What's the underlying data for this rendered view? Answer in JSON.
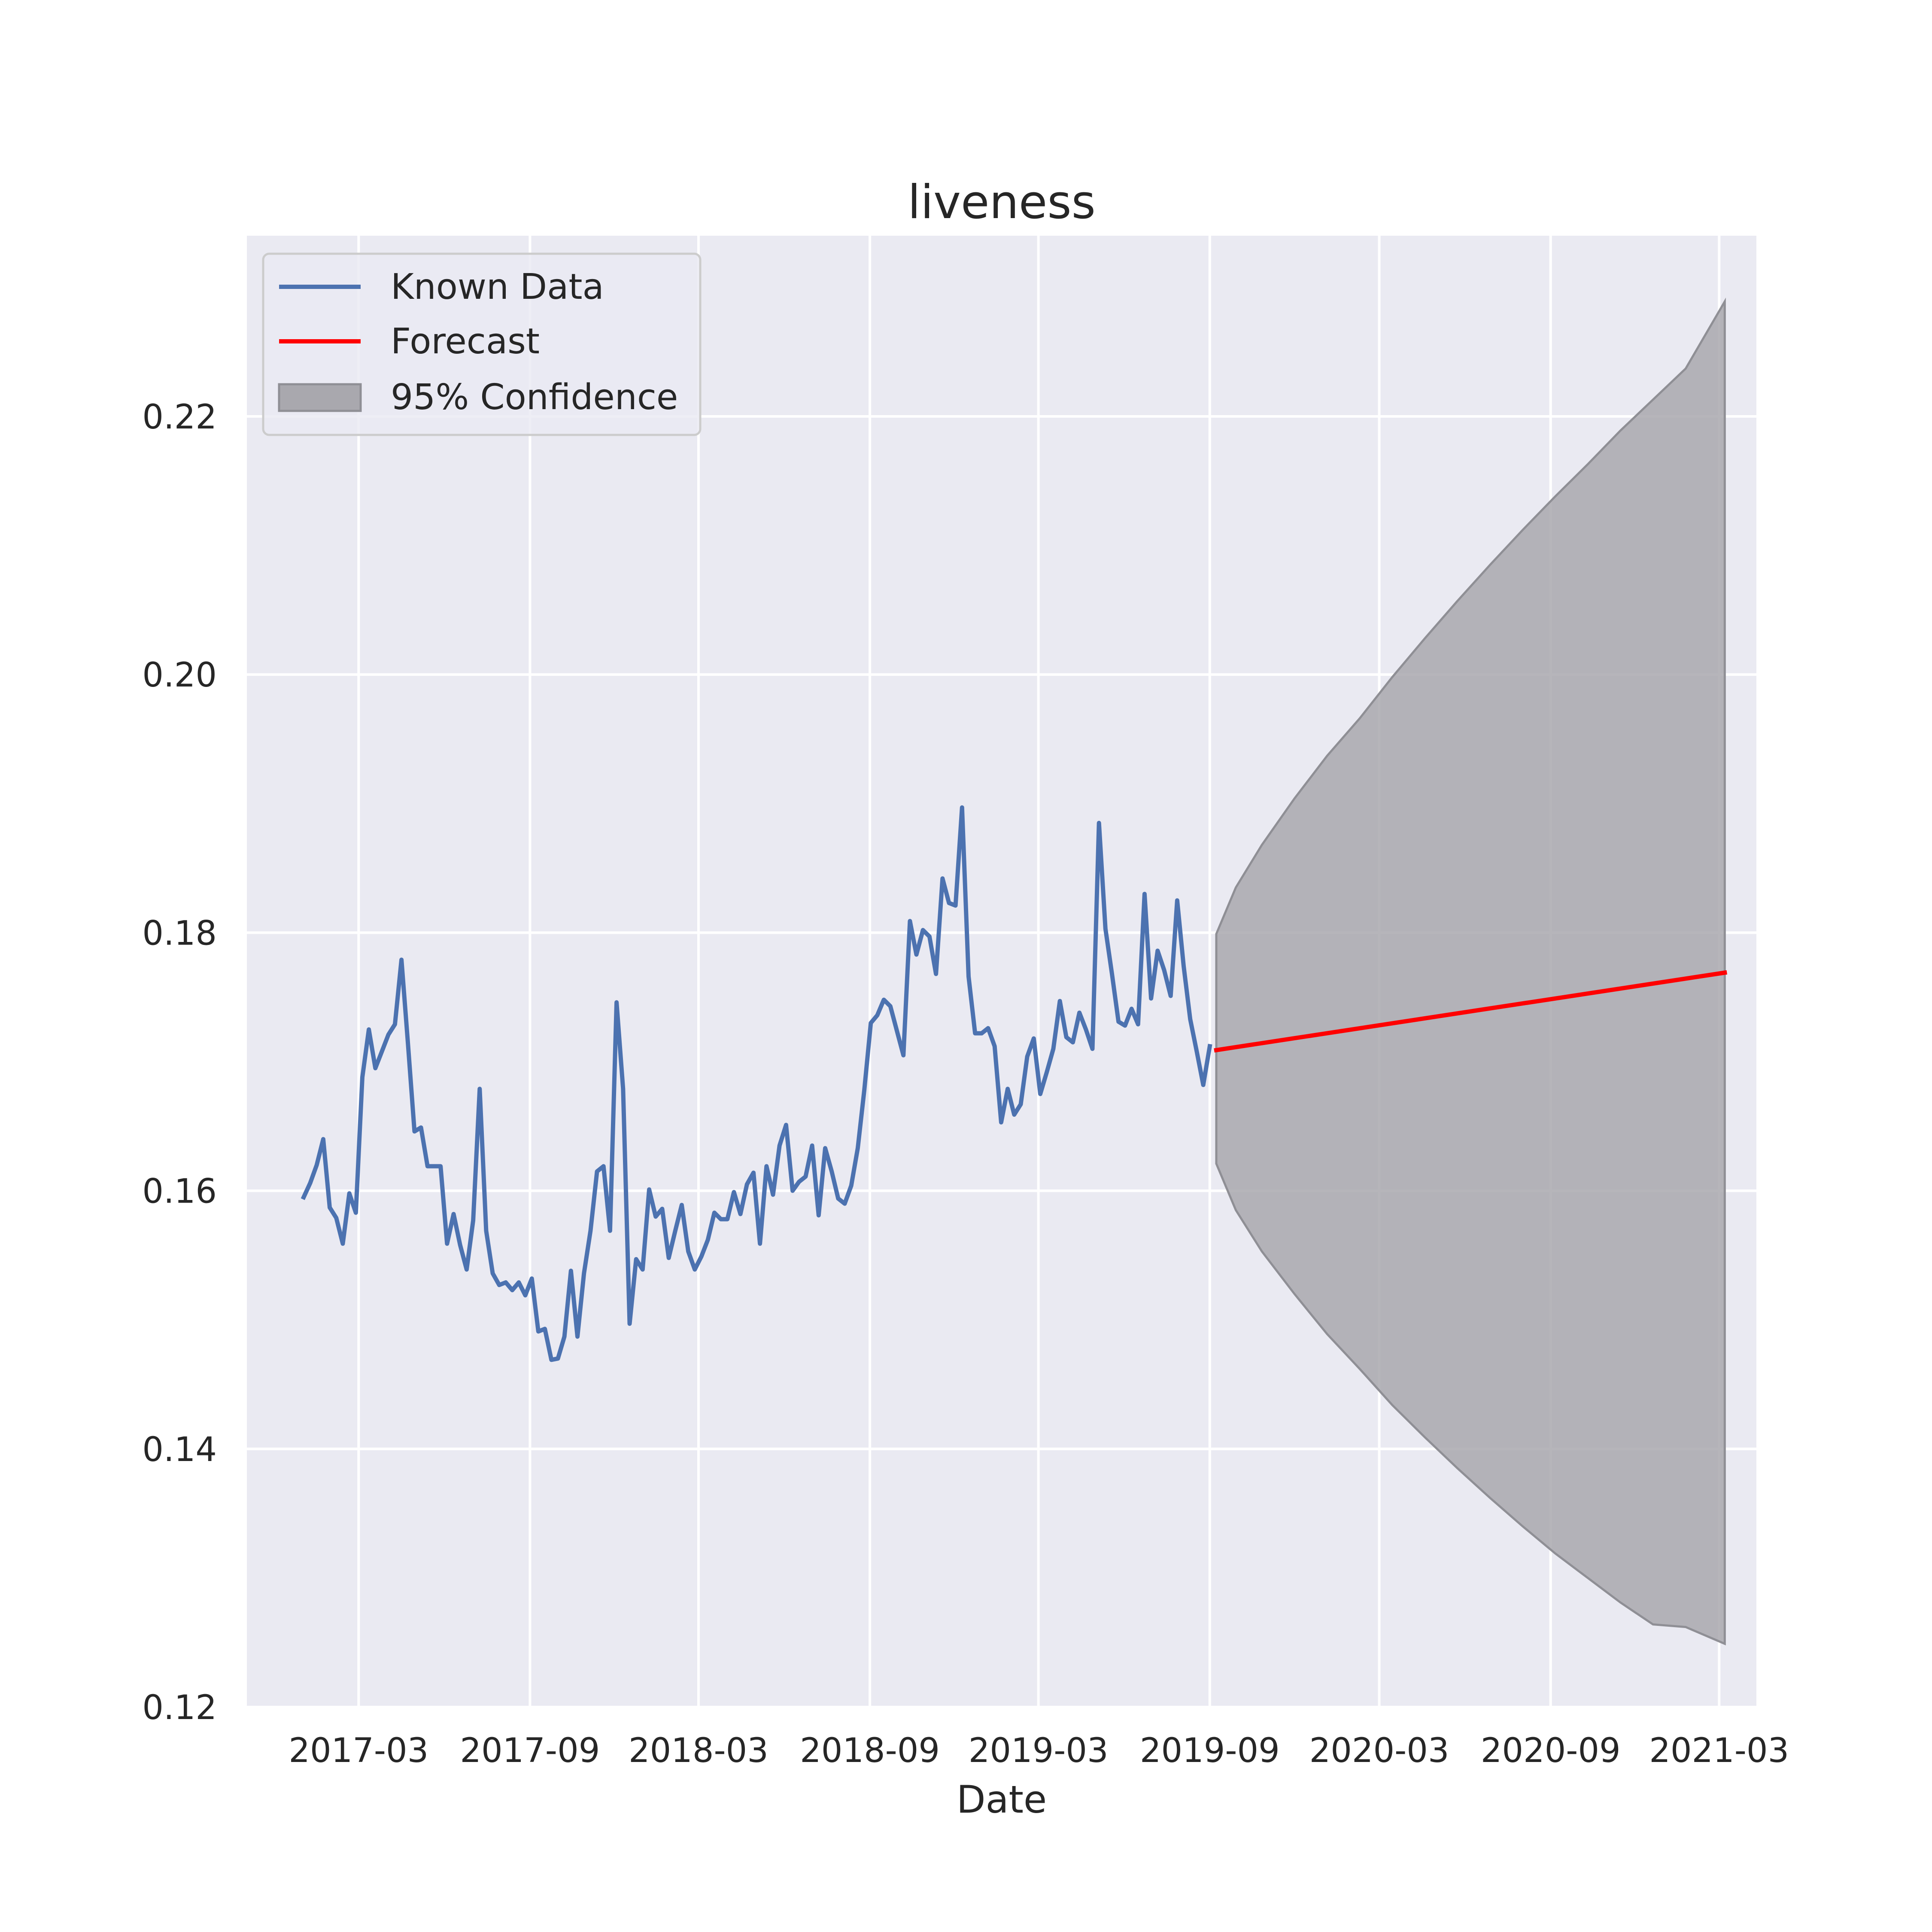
{
  "chart_data": {
    "type": "line",
    "title": "liveness",
    "xlabel": "Date",
    "ylabel": "",
    "ylim": [
      0.12,
      0.234
    ],
    "xlim": [
      "2016-11-01",
      "2021-04-10"
    ],
    "grid": true,
    "legend_position": "top-left",
    "x_ticks": [
      {
        "date": "2017-03-01",
        "label": "2017-03"
      },
      {
        "date": "2017-09-01",
        "label": "2017-09"
      },
      {
        "date": "2018-03-01",
        "label": "2018-03"
      },
      {
        "date": "2018-09-01",
        "label": "2018-09"
      },
      {
        "date": "2019-03-01",
        "label": "2019-03"
      },
      {
        "date": "2019-09-01",
        "label": "2019-09"
      },
      {
        "date": "2020-03-01",
        "label": "2020-03"
      },
      {
        "date": "2020-09-01",
        "label": "2020-09"
      },
      {
        "date": "2021-03-01",
        "label": "2021-03"
      }
    ],
    "y_ticks": [
      {
        "value": 0.12,
        "label": "0.12"
      },
      {
        "value": 0.14,
        "label": "0.14"
      },
      {
        "value": 0.16,
        "label": "0.16"
      },
      {
        "value": 0.18,
        "label": "0.18"
      },
      {
        "value": 0.2,
        "label": "0.20"
      },
      {
        "value": 0.22,
        "label": "0.22"
      }
    ],
    "legend": [
      {
        "label": "Known Data",
        "kind": "line",
        "color": "#4c72b0"
      },
      {
        "label": "Forecast",
        "kind": "line",
        "color": "#ff0000"
      },
      {
        "label": "95% Confidence",
        "kind": "patch",
        "color": "#a9a8ae"
      }
    ],
    "series": [
      {
        "name": "Known Data",
        "color": "#4c72b0",
        "points": [
          [
            "2017-01-01",
            0.1595
          ],
          [
            "2017-01-08",
            0.1606
          ],
          [
            "2017-01-15",
            0.162
          ],
          [
            "2017-01-22",
            0.164
          ],
          [
            "2017-01-29",
            0.1587
          ],
          [
            "2017-02-05",
            0.1579
          ],
          [
            "2017-02-12",
            0.1559
          ],
          [
            "2017-02-19",
            0.1598
          ],
          [
            "2017-02-26",
            0.1583
          ],
          [
            "2017-03-05",
            0.1688
          ],
          [
            "2017-03-12",
            0.1725
          ],
          [
            "2017-03-19",
            0.1695
          ],
          [
            "2017-03-26",
            0.1708
          ],
          [
            "2017-04-02",
            0.1721
          ],
          [
            "2017-04-09",
            0.1729
          ],
          [
            "2017-04-16",
            0.1779
          ],
          [
            "2017-04-23",
            0.1714
          ],
          [
            "2017-04-30",
            0.1646
          ],
          [
            "2017-05-07",
            0.1649
          ],
          [
            "2017-05-14",
            0.1619
          ],
          [
            "2017-05-21",
            0.1619
          ],
          [
            "2017-05-28",
            0.1619
          ],
          [
            "2017-06-04",
            0.1559
          ],
          [
            "2017-06-11",
            0.1582
          ],
          [
            "2017-06-18",
            0.1558
          ],
          [
            "2017-06-25",
            0.1539
          ],
          [
            "2017-07-02",
            0.1577
          ],
          [
            "2017-07-09",
            0.1679
          ],
          [
            "2017-07-16",
            0.1569
          ],
          [
            "2017-07-23",
            0.1536
          ],
          [
            "2017-07-30",
            0.1527
          ],
          [
            "2017-08-06",
            0.1529
          ],
          [
            "2017-08-13",
            0.1523
          ],
          [
            "2017-08-20",
            0.1529
          ],
          [
            "2017-08-27",
            0.1519
          ],
          [
            "2017-09-03",
            0.1532
          ],
          [
            "2017-09-10",
            0.1491
          ],
          [
            "2017-09-17",
            0.1493
          ],
          [
            "2017-09-24",
            0.1469
          ],
          [
            "2017-10-01",
            0.147
          ],
          [
            "2017-10-08",
            0.1487
          ],
          [
            "2017-10-15",
            0.1538
          ],
          [
            "2017-10-22",
            0.1487
          ],
          [
            "2017-10-29",
            0.1536
          ],
          [
            "2017-11-05",
            0.1569
          ],
          [
            "2017-11-12",
            0.1615
          ],
          [
            "2017-11-19",
            0.1619
          ],
          [
            "2017-11-26",
            0.1569
          ],
          [
            "2017-12-03",
            0.1746
          ],
          [
            "2017-12-10",
            0.1679
          ],
          [
            "2017-12-17",
            0.1497
          ],
          [
            "2017-12-24",
            0.1547
          ],
          [
            "2017-12-31",
            0.1539
          ],
          [
            "2018-01-07",
            0.1601
          ],
          [
            "2018-01-14",
            0.158
          ],
          [
            "2018-01-21",
            0.1586
          ],
          [
            "2018-01-28",
            0.1548
          ],
          [
            "2018-02-04",
            0.1569
          ],
          [
            "2018-02-11",
            0.1589
          ],
          [
            "2018-02-18",
            0.1553
          ],
          [
            "2018-02-25",
            0.1539
          ],
          [
            "2018-03-04",
            0.1549
          ],
          [
            "2018-03-11",
            0.1562
          ],
          [
            "2018-03-18",
            0.1583
          ],
          [
            "2018-03-25",
            0.1578
          ],
          [
            "2018-04-01",
            0.1578
          ],
          [
            "2018-04-08",
            0.1599
          ],
          [
            "2018-04-15",
            0.1582
          ],
          [
            "2018-04-22",
            0.1605
          ],
          [
            "2018-04-29",
            0.1614
          ],
          [
            "2018-05-06",
            0.1559
          ],
          [
            "2018-05-13",
            0.1619
          ],
          [
            "2018-05-20",
            0.1597
          ],
          [
            "2018-05-27",
            0.1635
          ],
          [
            "2018-06-03",
            0.1651
          ],
          [
            "2018-06-10",
            0.16
          ],
          [
            "2018-06-17",
            0.1607
          ],
          [
            "2018-06-24",
            0.1611
          ],
          [
            "2018-07-01",
            0.1635
          ],
          [
            "2018-07-08",
            0.1581
          ],
          [
            "2018-07-15",
            0.1633
          ],
          [
            "2018-07-22",
            0.1615
          ],
          [
            "2018-07-29",
            0.1594
          ],
          [
            "2018-08-05",
            0.159
          ],
          [
            "2018-08-12",
            0.1604
          ],
          [
            "2018-08-19",
            0.1633
          ],
          [
            "2018-08-26",
            0.1678
          ],
          [
            "2018-09-02",
            0.173
          ],
          [
            "2018-09-09",
            0.1736
          ],
          [
            "2018-09-16",
            0.1748
          ],
          [
            "2018-09-23",
            0.1743
          ],
          [
            "2018-09-30",
            0.1724
          ],
          [
            "2018-10-07",
            0.1705
          ],
          [
            "2018-10-14",
            0.1809
          ],
          [
            "2018-10-21",
            0.1783
          ],
          [
            "2018-10-28",
            0.1802
          ],
          [
            "2018-11-04",
            0.1797
          ],
          [
            "2018-11-11",
            0.1768
          ],
          [
            "2018-11-18",
            0.1842
          ],
          [
            "2018-11-25",
            0.1823
          ],
          [
            "2018-12-02",
            0.1821
          ],
          [
            "2018-12-09",
            0.1897
          ],
          [
            "2018-12-16",
            0.1766
          ],
          [
            "2018-12-23",
            0.1722
          ],
          [
            "2018-12-30",
            0.1722
          ],
          [
            "2019-01-06",
            0.1726
          ],
          [
            "2019-01-13",
            0.1712
          ],
          [
            "2019-01-20",
            0.1653
          ],
          [
            "2019-01-27",
            0.1679
          ],
          [
            "2019-02-03",
            0.1659
          ],
          [
            "2019-02-10",
            0.1667
          ],
          [
            "2019-02-17",
            0.1704
          ],
          [
            "2019-02-24",
            0.1718
          ],
          [
            "2019-03-03",
            0.1675
          ],
          [
            "2019-03-10",
            0.1692
          ],
          [
            "2019-03-17",
            0.171
          ],
          [
            "2019-03-24",
            0.1747
          ],
          [
            "2019-03-31",
            0.1719
          ],
          [
            "2019-04-07",
            0.1715
          ],
          [
            "2019-04-14",
            0.1738
          ],
          [
            "2019-04-21",
            0.1725
          ],
          [
            "2019-04-28",
            0.171
          ],
          [
            "2019-05-05",
            0.1885
          ],
          [
            "2019-05-12",
            0.1803
          ],
          [
            "2019-05-19",
            0.1768
          ],
          [
            "2019-05-26",
            0.1731
          ],
          [
            "2019-06-02",
            0.1728
          ],
          [
            "2019-06-09",
            0.1741
          ],
          [
            "2019-06-16",
            0.1729
          ],
          [
            "2019-06-23",
            0.183
          ],
          [
            "2019-06-30",
            0.1749
          ],
          [
            "2019-07-07",
            0.1786
          ],
          [
            "2019-07-14",
            0.1771
          ],
          [
            "2019-07-21",
            0.1751
          ],
          [
            "2019-07-28",
            0.1825
          ],
          [
            "2019-08-04",
            0.1774
          ],
          [
            "2019-08-11",
            0.1733
          ],
          [
            "2019-08-18",
            0.1708
          ],
          [
            "2019-08-25",
            0.1682
          ],
          [
            "2019-09-01",
            0.1712
          ]
        ]
      },
      {
        "name": "Forecast",
        "color": "#ff0000",
        "points": [
          [
            "2019-09-08",
            0.1709
          ],
          [
            "2021-03-07",
            0.1769
          ]
        ]
      }
    ],
    "confidence": {
      "name": "95% Confidence",
      "color": "#a9a8ae",
      "points": [
        [
          "2019-09-08",
          0.1799,
          0.1621
        ],
        [
          "2019-09-29",
          0.1835,
          0.1585
        ],
        [
          "2019-10-27",
          0.1868,
          0.1553
        ],
        [
          "2019-12-01",
          0.1904,
          0.152
        ],
        [
          "2020-01-05",
          0.1937,
          0.1489
        ],
        [
          "2020-02-09",
          0.1966,
          0.1462
        ],
        [
          "2020-03-15",
          0.1998,
          0.1434
        ],
        [
          "2020-04-19",
          0.2028,
          0.1409
        ],
        [
          "2020-05-24",
          0.2057,
          0.1385
        ],
        [
          "2020-06-28",
          0.2085,
          0.1362
        ],
        [
          "2020-08-02",
          0.2112,
          0.134
        ],
        [
          "2020-09-06",
          0.2138,
          0.1319
        ],
        [
          "2020-10-11",
          0.2163,
          0.13
        ],
        [
          "2020-11-15",
          0.2189,
          0.1281
        ],
        [
          "2020-12-20",
          0.2213,
          0.1264
        ],
        [
          "2021-01-24",
          0.2237,
          0.1262
        ],
        [
          "2021-03-07",
          0.2289,
          0.1249
        ]
      ]
    }
  }
}
